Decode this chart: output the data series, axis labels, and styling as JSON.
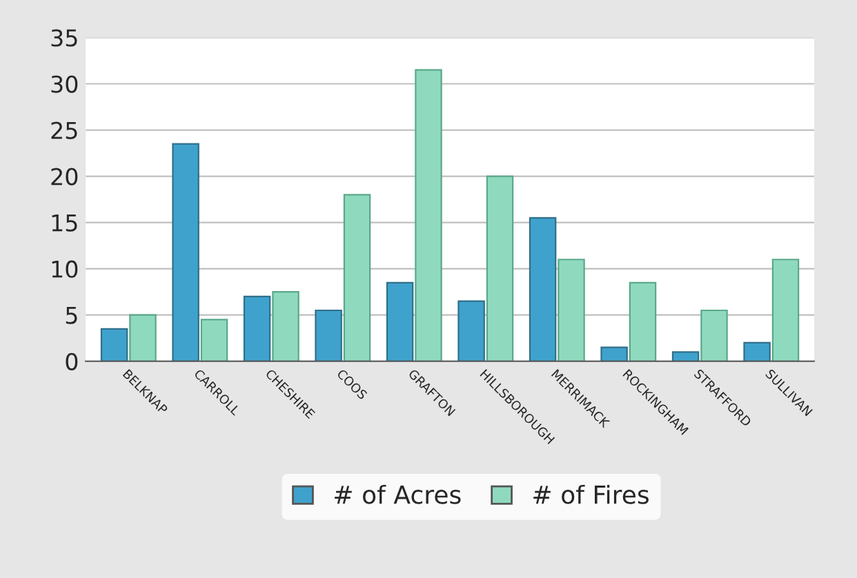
{
  "chart_data": {
    "type": "bar",
    "categories": [
      "BELKNAP",
      "CARROLL",
      "CHESHIRE",
      "COOS",
      "GRAFTON",
      "HILLSBOROUGH",
      "MERRIMACK",
      "ROCKINGHAM",
      "STRAFFORD",
      "SULLIVAN"
    ],
    "series": [
      {
        "name": "# of Acres",
        "color": "#3fa2cc",
        "values": [
          3.5,
          23.5,
          7,
          5.5,
          8.5,
          6.5,
          15.5,
          1.5,
          1,
          2
        ]
      },
      {
        "name": "# of Fires",
        "color": "#8fdabe",
        "values": [
          5,
          4.5,
          7.5,
          18,
          31.5,
          20,
          11,
          8.5,
          5.5,
          11
        ]
      }
    ],
    "ylim": [
      0,
      35
    ],
    "yticks": [
      0,
      5,
      10,
      15,
      20,
      25,
      30,
      35
    ],
    "grid": "y",
    "legend": "bottom"
  }
}
